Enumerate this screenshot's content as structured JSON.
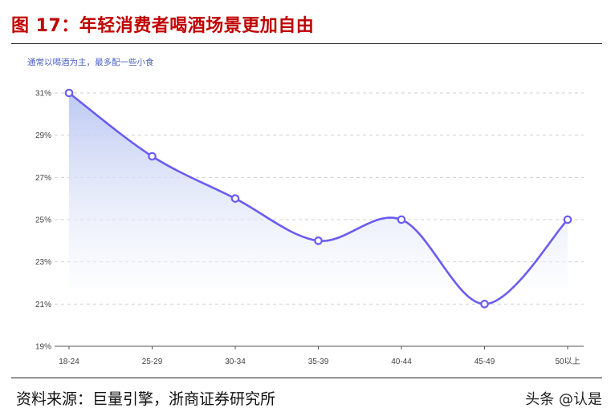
{
  "page": {
    "title": "图 17：年轻消费者喝酒场景更加自由",
    "source": "资料来源：巨量引擎，浙商证券研究所",
    "watermark": "头条 @认是"
  },
  "chart_data": {
    "type": "area",
    "title": "",
    "subtitle": "通常以喝酒为主，最多配一些小食",
    "xlabel": "",
    "ylabel": "",
    "categories": [
      "18-24",
      "25-29",
      "30-34",
      "35-39",
      "40-44",
      "45-49",
      "50以上"
    ],
    "series": [
      {
        "values": [
          31,
          28,
          26,
          24,
          25,
          21,
          25
        ]
      }
    ],
    "ylim": [
      19,
      31
    ],
    "yticks": [
      19,
      21,
      23,
      25,
      27,
      29,
      31
    ],
    "ytick_labels": [
      "19%",
      "21%",
      "23%",
      "25%",
      "27%",
      "29%",
      "31%"
    ],
    "unit": "%",
    "grid": true,
    "smooth": true,
    "markers": "hollow-circle",
    "colors": {
      "line": "#6b5cf0",
      "fill_top": "#b9c6f2",
      "fill_bottom": "#ffffff",
      "grid": "#cfcfcf",
      "subtitle": "#4f63c9",
      "title": "#c00000"
    }
  }
}
